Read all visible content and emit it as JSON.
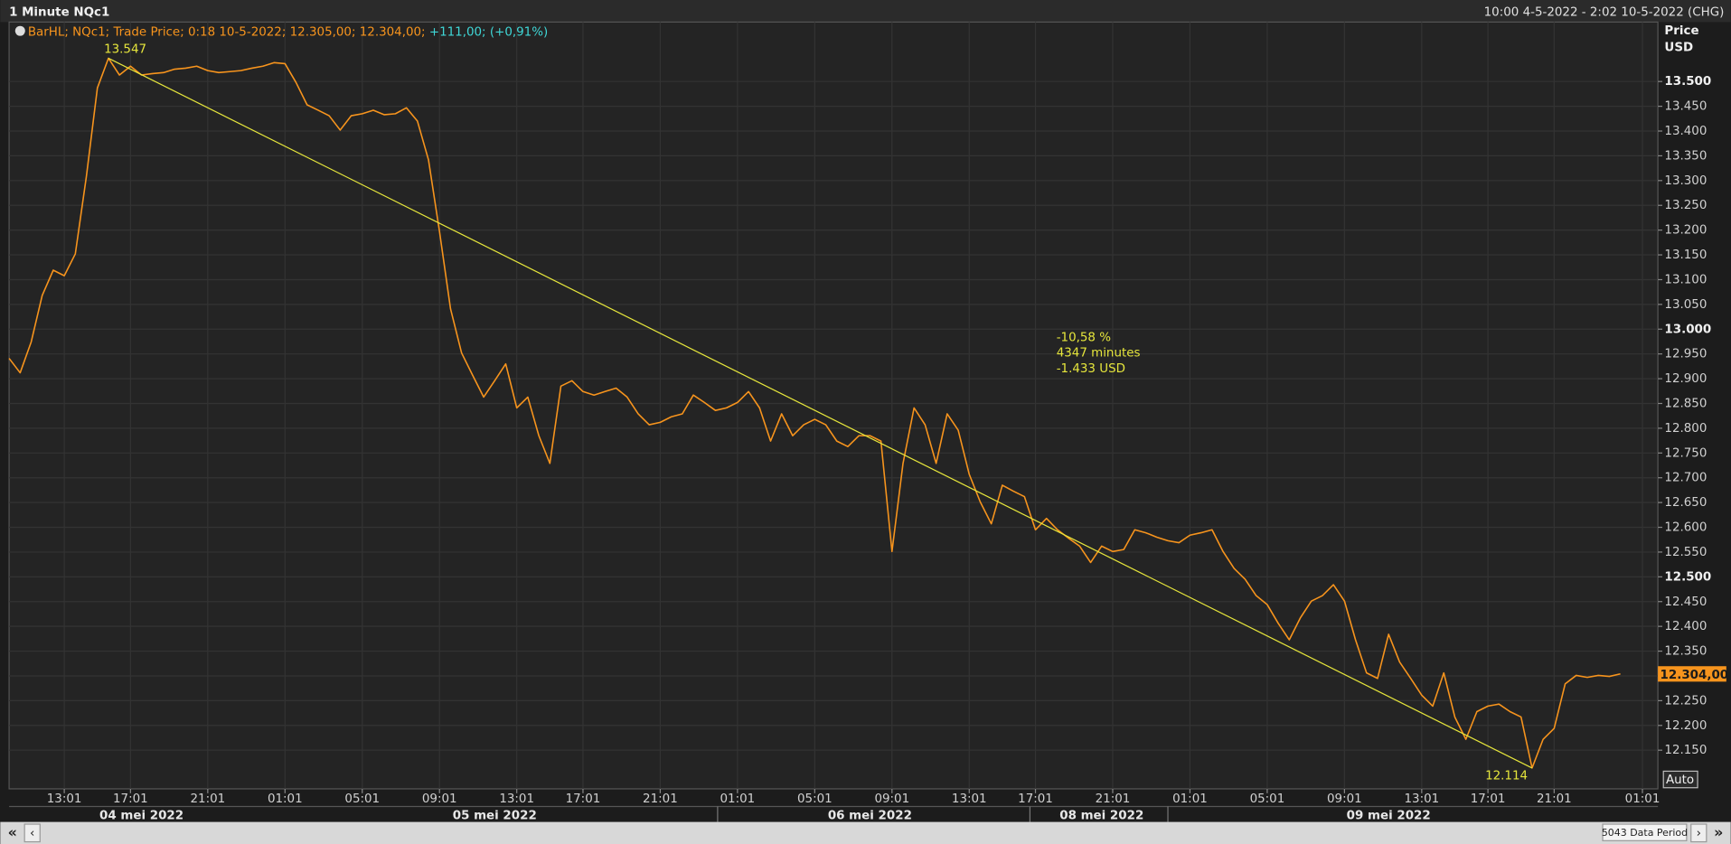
{
  "header": {
    "title": "1 Minute NQc1",
    "range": "10:00 4-5-2022 - 2:02 10-5-2022 (CHG)"
  },
  "legend": {
    "text": "BarHL; NQc1; Trade Price; 0:18 10-5-2022; 12.305,00; 12.304,00;",
    "change": "+111,00; (+0,91%)"
  },
  "axis_title": [
    "Price",
    "USD"
  ],
  "auto_button": "Auto",
  "footer": {
    "period": "5043 Data Period"
  },
  "chart_data": {
    "type": "line",
    "categories": [
      null,
      null,
      null,
      null,
      null,
      "13:01",
      null,
      null,
      null,
      null,
      null,
      "17:01",
      null,
      null,
      null,
      null,
      null,
      null,
      "21:01",
      null,
      null,
      null,
      null,
      null,
      null,
      "01:01",
      null,
      null,
      null,
      null,
      null,
      null,
      "05:01",
      null,
      null,
      null,
      null,
      null,
      null,
      "09:01",
      null,
      null,
      null,
      null,
      null,
      null,
      "13:01",
      null,
      null,
      null,
      null,
      null,
      "17:01",
      null,
      null,
      null,
      null,
      null,
      null,
      "21:01",
      null,
      null,
      null,
      null,
      null,
      null,
      "01:01",
      null,
      null,
      null,
      null,
      null,
      null,
      "05:01",
      null,
      null,
      null,
      null,
      null,
      null,
      "09:01",
      null,
      null,
      null,
      null,
      null,
      null,
      "13:01",
      null,
      null,
      null,
      null,
      null,
      "17:01",
      null,
      null,
      null,
      null,
      null,
      null,
      "21:01",
      null,
      null,
      null,
      null,
      null,
      null,
      "01:01",
      null,
      null,
      null,
      null,
      null,
      null,
      "05:01",
      null,
      null,
      null,
      null,
      null,
      null,
      "09:01",
      null,
      null,
      null,
      null,
      null,
      null,
      "13:01",
      null,
      null,
      null,
      null,
      null,
      "17:01",
      null,
      null,
      null,
      null,
      null,
      "21:01",
      null,
      null,
      null,
      null,
      null,
      null,
      null,
      "01:01"
    ],
    "date_categories": [
      null,
      null,
      null,
      null,
      null,
      null,
      null,
      null,
      null,
      null,
      null,
      null,
      "04 mei 2022",
      null,
      null,
      null,
      null,
      null,
      null,
      null,
      null,
      null,
      null,
      null,
      null,
      null,
      null,
      null,
      null,
      null,
      null,
      null,
      null,
      null,
      null,
      null,
      null,
      null,
      null,
      null,
      null,
      null,
      null,
      null,
      "05 mei 2022",
      null,
      null,
      null,
      null,
      null,
      null,
      null,
      null,
      null,
      null,
      null,
      null,
      null,
      null,
      null,
      null,
      null,
      null,
      null,
      null,
      null,
      null,
      null,
      null,
      null,
      null,
      null,
      null,
      null,
      null,
      null,
      null,
      null,
      "06 mei 2022",
      null,
      null,
      null,
      null,
      null,
      null,
      null,
      null,
      null,
      null,
      null,
      null,
      null,
      null,
      null,
      null,
      null,
      null,
      null,
      null,
      "08 mei 2022",
      null,
      null,
      null,
      null,
      null,
      null,
      null,
      null,
      null,
      null,
      null,
      null,
      null,
      null,
      null,
      null,
      null,
      null,
      null,
      null,
      null,
      null,
      null,
      null,
      null,
      "09 mei 2022",
      null,
      null,
      null,
      null,
      null,
      null,
      null,
      null,
      null,
      null,
      null,
      null,
      null,
      null,
      null,
      null,
      null,
      null,
      null,
      null,
      null,
      null
    ],
    "series": [
      {
        "name": "NQc1",
        "color": "#f7941d",
        "values": [
          12941,
          12912,
          12974,
          13068,
          13119,
          13108,
          13152,
          13308,
          13487,
          13547,
          13513,
          13531,
          13513,
          13516,
          13518,
          13525,
          13527,
          13531,
          13522,
          13518,
          13520,
          13522,
          13527,
          13531,
          13538,
          13536,
          13498,
          13453,
          13442,
          13431,
          13402,
          13431,
          13435,
          13442,
          13433,
          13435,
          13447,
          13420,
          13342,
          13197,
          13041,
          12952,
          12907,
          12863,
          12896,
          12930,
          12841,
          12863,
          12785,
          12729,
          12885,
          12896,
          12874,
          12867,
          12874,
          12881,
          12863,
          12829,
          12807,
          12812,
          12823,
          12829,
          12867,
          12852,
          12836,
          12841,
          12852,
          12874,
          12841,
          12774,
          12829,
          12785,
          12807,
          12818,
          12807,
          12774,
          12763,
          12785,
          12785,
          12774,
          12551,
          12729,
          12841,
          12807,
          12729,
          12829,
          12796,
          12707,
          12651,
          12607,
          12685,
          12673,
          12662,
          12595,
          12618,
          12595,
          12578,
          12562,
          12529,
          12562,
          12551,
          12555,
          12595,
          12589,
          12580,
          12573,
          12569,
          12584,
          12589,
          12595,
          12551,
          12517,
          12495,
          12462,
          12444,
          12406,
          12373,
          12417,
          12451,
          12462,
          12484,
          12451,
          12373,
          12306,
          12295,
          12384,
          12328,
          12295,
          12261,
          12239,
          12306,
          12217,
          12172,
          12228,
          12239,
          12243,
          12228,
          12217,
          12114,
          12172,
          12194,
          12284,
          12301,
          12297,
          12301,
          12299,
          12304,
          null,
          null
        ]
      }
    ],
    "ylim": [
      12072,
      13620
    ],
    "yticks": [
      {
        "value": 12150,
        "label": "12.150"
      },
      {
        "value": 12200,
        "label": "12.200"
      },
      {
        "value": 12250,
        "label": "12.250"
      },
      {
        "value": 12300,
        "label": "12.300"
      },
      {
        "value": 12350,
        "label": "12.350"
      },
      {
        "value": 12400,
        "label": "12.400"
      },
      {
        "value": 12450,
        "label": "12.450"
      },
      {
        "value": 12500,
        "label": "12.500"
      },
      {
        "value": 12550,
        "label": "12.550"
      },
      {
        "value": 12600,
        "label": "12.600"
      },
      {
        "value": 12650,
        "label": "12.650"
      },
      {
        "value": 12700,
        "label": "12.700"
      },
      {
        "value": 12750,
        "label": "12.750"
      },
      {
        "value": 12800,
        "label": "12.800"
      },
      {
        "value": 12850,
        "label": "12.850"
      },
      {
        "value": 12900,
        "label": "12.900"
      },
      {
        "value": 12950,
        "label": "12.950"
      },
      {
        "value": 13000,
        "label": "13.000"
      },
      {
        "value": 13050,
        "label": "13.050"
      },
      {
        "value": 13100,
        "label": "13.100"
      },
      {
        "value": 13150,
        "label": "13.150"
      },
      {
        "value": 13200,
        "label": "13.200"
      },
      {
        "value": 13250,
        "label": "13.250"
      },
      {
        "value": 13300,
        "label": "13.300"
      },
      {
        "value": 13350,
        "label": "13.350"
      },
      {
        "value": 13400,
        "label": "13.400"
      },
      {
        "value": 13450,
        "label": "13.450"
      },
      {
        "value": 13500,
        "label": "13.500"
      }
    ],
    "grid": true,
    "high": {
      "value": 13547,
      "label": "13.547"
    },
    "low": {
      "value": 12114,
      "label": "12.114"
    },
    "trendline_color": "#e6e63c",
    "last_price": {
      "value": 12304,
      "label": "12.304,00"
    },
    "annotations": [
      "-10,58 %",
      "4347 minutes",
      "-1.433 USD"
    ]
  }
}
